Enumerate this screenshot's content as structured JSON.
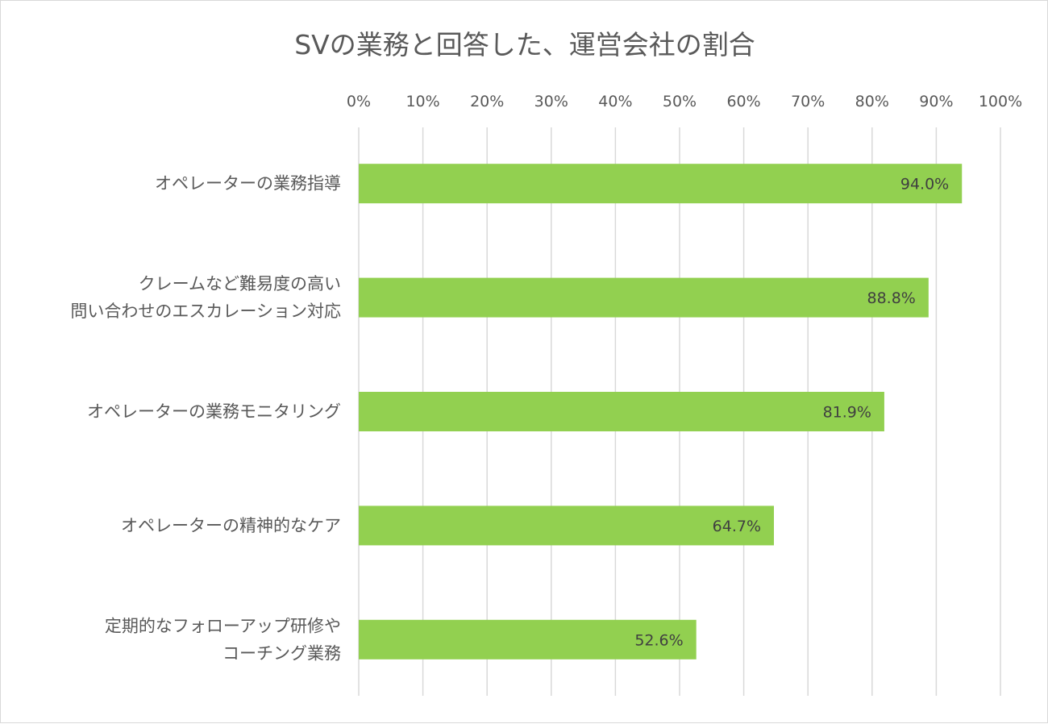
{
  "chart_data": {
    "type": "bar",
    "orientation": "horizontal",
    "title": "SVの業務と回答した、運営会社の割合",
    "categories": [
      [
        "オペレーターの業務指導"
      ],
      [
        "クレームなど難易度の高い",
        "問い合わせのエスカレーション対応"
      ],
      [
        "オペレーターの業務モニタリング"
      ],
      [
        "オペレーターの精神的なケア"
      ],
      [
        "定期的なフォローアップ研修や",
        "コーチング業務"
      ]
    ],
    "values": [
      94.0,
      88.8,
      81.9,
      64.7,
      52.6
    ],
    "data_labels": [
      "94.0%",
      "88.8%",
      "81.9%",
      "64.7%",
      "52.6%"
    ],
    "xlim": [
      0,
      100
    ],
    "x_ticks": [
      "0%",
      "10%",
      "20%",
      "30%",
      "40%",
      "50%",
      "60%",
      "70%",
      "80%",
      "90%",
      "100%"
    ],
    "x_axis_position": "top",
    "grid": true,
    "bar_color": "#92d050"
  }
}
